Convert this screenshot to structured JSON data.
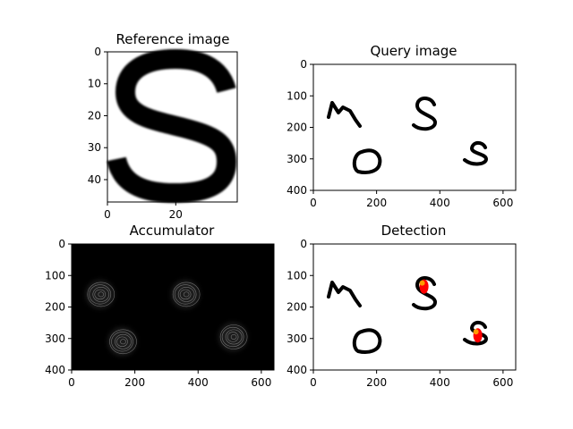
{
  "chart_data": [
    {
      "type": "image",
      "title": "Reference image",
      "xticks": [
        0,
        20
      ],
      "yticks": [
        0,
        10,
        20,
        30,
        40
      ],
      "xlim": [
        0,
        38
      ],
      "ylim": [
        47,
        0
      ],
      "content": "reference glyph 'S'"
    },
    {
      "type": "image",
      "title": "Query image",
      "xticks": [
        0,
        200,
        400,
        600
      ],
      "yticks": [
        0,
        100,
        200,
        300,
        400
      ],
      "xlim": [
        0,
        640
      ],
      "ylim": [
        400,
        0
      ],
      "content": "handwritten 'm', 'S', 'o', 's'"
    },
    {
      "type": "heatmap",
      "title": "Accumulator",
      "xticks": [
        0,
        200,
        400,
        600
      ],
      "yticks": [
        0,
        100,
        200,
        300,
        400
      ],
      "xlim": [
        0,
        640
      ],
      "ylim": [
        400,
        0
      ],
      "colormap": "gray",
      "hotspots": [
        {
          "x": 90,
          "y": 160
        },
        {
          "x": 360,
          "y": 160
        },
        {
          "x": 160,
          "y": 310
        },
        {
          "x": 510,
          "y": 295
        }
      ]
    },
    {
      "type": "image",
      "title": "Detection",
      "xticks": [
        0,
        200,
        400,
        600
      ],
      "yticks": [
        0,
        100,
        200,
        300,
        400
      ],
      "xlim": [
        0,
        640
      ],
      "ylim": [
        400,
        0
      ],
      "content": "query image with detections overlaid",
      "detections": [
        {
          "x": 350,
          "y": 135
        },
        {
          "x": 520,
          "y": 290
        }
      ],
      "marker_colors": [
        "#ff0000",
        "#ff9900"
      ]
    }
  ]
}
